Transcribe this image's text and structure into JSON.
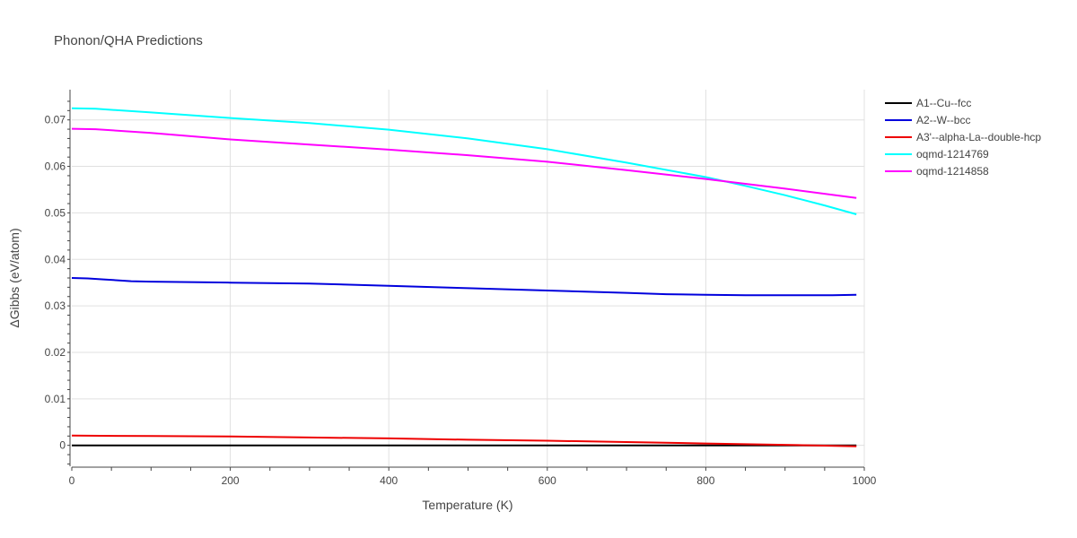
{
  "chart_data": {
    "type": "line",
    "title": "Phonon/QHA Predictions",
    "xlabel": "Temperature (K)",
    "ylabel": "ΔGibbs (eV/atom)",
    "xlim": [
      0,
      1000
    ],
    "ylim": [
      -0.0045,
      0.0765
    ],
    "xticks": [
      0,
      200,
      400,
      600,
      800,
      1000
    ],
    "yticks": [
      0,
      0.01,
      0.02,
      0.03,
      0.04,
      0.05,
      0.06,
      0.07
    ],
    "ytick_labels": [
      "0",
      "0.01",
      "0.02",
      "0.03",
      "0.04",
      "0.05",
      "0.06",
      "0.07"
    ],
    "grid": true,
    "legend_position": "top-right",
    "series": [
      {
        "name": "A1--Cu--fcc",
        "color": "#000000",
        "x": [
          0,
          100,
          200,
          300,
          400,
          500,
          600,
          700,
          800,
          900,
          990
        ],
        "y": [
          0,
          0,
          0,
          0,
          0,
          0,
          0,
          0,
          0,
          0,
          0
        ]
      },
      {
        "name": "A2--W--bcc",
        "color": "#0000dd",
        "x": [
          0,
          20,
          40,
          75,
          100,
          200,
          300,
          400,
          500,
          600,
          700,
          750,
          800,
          850,
          900,
          960,
          990
        ],
        "y": [
          0.036,
          0.0359,
          0.0357,
          0.0353,
          0.0352,
          0.035,
          0.0348,
          0.0343,
          0.0338,
          0.0333,
          0.0328,
          0.0325,
          0.0324,
          0.0323,
          0.0323,
          0.0323,
          0.0324
        ]
      },
      {
        "name": "A3'--alpha-La--double-hcp",
        "color": "#ee0000",
        "x": [
          0,
          100,
          200,
          300,
          400,
          500,
          600,
          700,
          800,
          900,
          990
        ],
        "y": [
          0.0021,
          0.002,
          0.0019,
          0.0017,
          0.0015,
          0.0012,
          0.001,
          0.0007,
          0.0004,
          0.0001,
          -0.0002
        ]
      },
      {
        "name": "oqmd-1214769",
        "color": "#00ffff",
        "x": [
          0,
          30,
          100,
          200,
          300,
          400,
          500,
          600,
          700,
          800,
          850,
          900,
          950,
          990
        ],
        "y": [
          0.0725,
          0.0724,
          0.0716,
          0.0704,
          0.0693,
          0.0679,
          0.066,
          0.0637,
          0.0608,
          0.0577,
          0.0558,
          0.0538,
          0.0516,
          0.0497
        ]
      },
      {
        "name": "oqmd-1214858",
        "color": "#ff00ff",
        "x": [
          0,
          30,
          100,
          200,
          300,
          400,
          500,
          600,
          700,
          800,
          900,
          990
        ],
        "y": [
          0.0681,
          0.068,
          0.0672,
          0.0658,
          0.0647,
          0.0636,
          0.0624,
          0.061,
          0.0592,
          0.0573,
          0.0552,
          0.0532
        ]
      }
    ]
  }
}
